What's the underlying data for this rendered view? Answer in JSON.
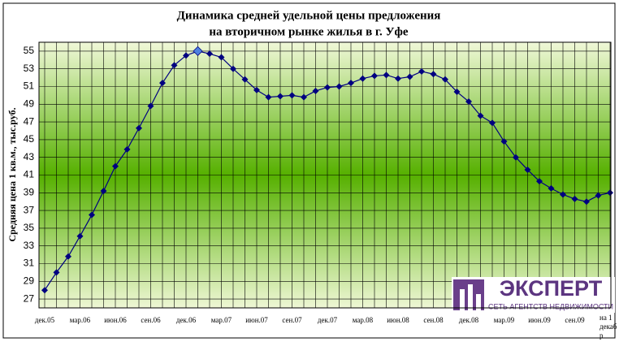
{
  "chart_data": {
    "type": "line",
    "title": "Динамика средней удельной цены предложения",
    "subtitle": "на вторичном рынке жилья в г. Уфе",
    "y_label": "Средняя цена 1 кв.м., тыс.руб.",
    "categories": [
      "дек.05",
      null,
      null,
      "мар.06",
      null,
      null,
      "июн.06",
      null,
      null,
      "сен.06",
      null,
      null,
      "дек.06",
      null,
      null,
      "мар.07",
      null,
      null,
      "июн.07",
      null,
      null,
      "сен.07",
      null,
      null,
      "дек.07",
      null,
      null,
      "мар.08",
      null,
      null,
      "июн.08",
      null,
      null,
      "сен.08",
      null,
      null,
      "дек.08",
      null,
      null,
      "мар.09",
      null,
      null,
      "июн.09",
      null,
      null,
      "сен.09",
      null,
      null,
      "на 1 декабр"
    ],
    "series": [
      {
        "name": "Средняя цена",
        "color": "#000080",
        "values": [
          28,
          30,
          31.8,
          34.1,
          36.5,
          39.2,
          42,
          43.9,
          46.3,
          48.8,
          51.4,
          53.4,
          54.5,
          55,
          54.7,
          54.3,
          53,
          51.8,
          50.6,
          49.8,
          49.9,
          50,
          49.8,
          50.5,
          50.9,
          51,
          51.4,
          51.9,
          52.2,
          52.3,
          51.9,
          52.1,
          52.7,
          52.4,
          51.8,
          50.4,
          49.3,
          47.7,
          46.9,
          44.8,
          43,
          41.6,
          40.3,
          39.5,
          38.8,
          38.3,
          38,
          38.7,
          39
        ]
      }
    ],
    "highlight": 13,
    "highlight_color": "#4f81e0",
    "ylim": [
      26,
      56
    ],
    "yticks": [
      27,
      29,
      31,
      33,
      35,
      37,
      39,
      41,
      43,
      45,
      47,
      49,
      51,
      53,
      55
    ],
    "grid": true
  },
  "logo": {
    "name": "ЭКСПЕРТ",
    "tagline": "СЕТЬ АГЕНТСТВ НЕДВИЖИМОСТИ"
  }
}
